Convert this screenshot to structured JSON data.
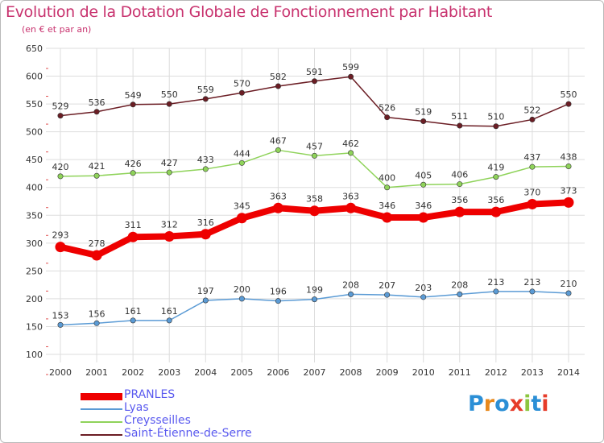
{
  "chart_data": {
    "type": "line",
    "title": "Evolution de la Dotation Globale de Fonctionnement par Habitant",
    "subtitle": "(en € et par an)",
    "xlabel": "",
    "ylabel": "",
    "ylim": [
      100,
      650
    ],
    "yticks": [
      100,
      150,
      200,
      250,
      300,
      350,
      400,
      450,
      500,
      550,
      600,
      650
    ],
    "grid": true,
    "categories": [
      "2000",
      "2001",
      "2002",
      "2003",
      "2004",
      "2005",
      "2006",
      "2007",
      "2008",
      "2009",
      "2010",
      "2011",
      "2012",
      "2013",
      "2014"
    ],
    "series": [
      {
        "name": "Saint-Étienne-de-Serre",
        "color": "#6b1d24",
        "values": [
          529,
          536,
          549,
          550,
          559,
          570,
          582,
          591,
          599,
          526,
          519,
          511,
          510,
          522,
          550
        ]
      },
      {
        "name": "Creysseilles",
        "color": "#8fd35a",
        "values": [
          420,
          421,
          426,
          427,
          433,
          444,
          467,
          457,
          462,
          400,
          405,
          406,
          419,
          437,
          438
        ]
      },
      {
        "name": "PRANLES",
        "color": "#ee0000",
        "values": [
          293,
          278,
          311,
          312,
          316,
          345,
          363,
          358,
          363,
          346,
          346,
          356,
          356,
          370,
          373
        ]
      },
      {
        "name": "Lyas",
        "color": "#5b9bd5",
        "values": [
          153,
          156,
          161,
          161,
          197,
          200,
          196,
          199,
          208,
          207,
          203,
          208,
          213,
          213,
          210
        ]
      }
    ],
    "legend": [
      "PRANLES",
      "Lyas",
      "Creysseilles",
      "Saint-Étienne-de-Serre"
    ],
    "legend_position": "bottom-left"
  },
  "logo": {
    "letters": [
      "P",
      "r",
      "o",
      "x",
      "i",
      "t",
      "i"
    ],
    "colors": [
      "#2b8fd6",
      "#e8891c",
      "#2b8fd6",
      "#e63c2a",
      "#8cc63f",
      "#2b8fd6",
      "#e63c2a"
    ]
  }
}
